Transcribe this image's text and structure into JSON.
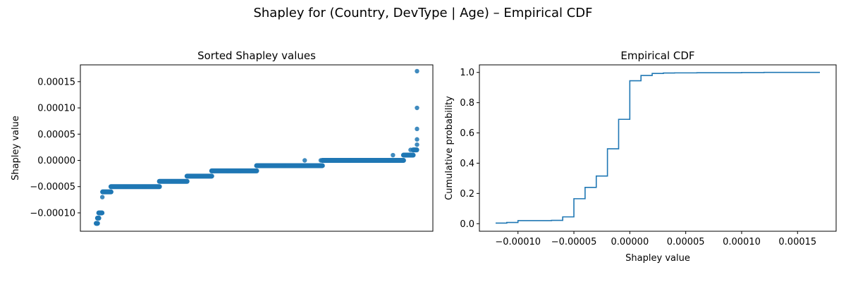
{
  "figure": {
    "title": "Shapley for (Country, DevType | Age) – Empirical CDF",
    "accent_color": "#1f77b4"
  },
  "chart_data": [
    {
      "type": "scatter",
      "title": "Sorted Shapley values",
      "xlabel": "",
      "ylabel": "Shapley value",
      "grid": false,
      "x_ticks_visible": false,
      "ylim": [
        -0.000135,
        0.000182
      ],
      "yticks": [
        -0.0001,
        -5e-05,
        0.0,
        5e-05,
        0.0001,
        0.00015
      ],
      "ytick_labels": [
        "−0.00010",
        "−0.00005",
        "0.00000",
        "0.00005",
        "0.00010",
        "0.00015"
      ],
      "series": [
        {
          "color": "#1f77b4",
          "points_note": "sorted index (0–1) vs value",
          "x": [
            0.0,
            0.004,
            0.006,
            0.009,
            0.013,
            0.019,
            0.022,
            0.045,
            0.09,
            0.15,
            0.195,
            0.24,
            0.255,
            0.285,
            0.33,
            0.36,
            0.41,
            0.45,
            0.52,
            0.585,
            0.64,
            0.65,
            0.7,
            0.79,
            0.915,
            0.925,
            0.96,
            0.98,
            0.99,
            1.0,
            1.0,
            1.0,
            1.0,
            1.0
          ],
          "y": [
            -0.00012,
            -0.00012,
            -0.00011,
            -0.0001,
            -0.0001,
            -7e-05,
            -6e-05,
            -6e-05,
            -5e-05,
            -5e-05,
            -5e-05,
            -4e-05,
            -4e-05,
            -3e-05,
            -3e-05,
            -2e-05,
            -2e-05,
            -2e-05,
            -1e-05,
            -1e-05,
            -1e-05,
            0.0,
            0.0,
            0.0,
            0.0,
            1e-05,
            1e-05,
            2e-05,
            2e-05,
            3e-05,
            4e-05,
            6e-05,
            0.0001,
            0.00017
          ]
        }
      ],
      "flat_segments": [
        {
          "y": -0.00012,
          "x0": 0.0,
          "x1": 0.004
        },
        {
          "y": -0.00011,
          "x0": 0.004,
          "x1": 0.008
        },
        {
          "y": -0.0001,
          "x0": 0.008,
          "x1": 0.018
        },
        {
          "y": -6e-05,
          "x0": 0.02,
          "x1": 0.046
        },
        {
          "y": -5e-05,
          "x0": 0.046,
          "x1": 0.197
        },
        {
          "y": -4e-05,
          "x0": 0.197,
          "x1": 0.283
        },
        {
          "y": -3e-05,
          "x0": 0.283,
          "x1": 0.36
        },
        {
          "y": -2e-05,
          "x0": 0.36,
          "x1": 0.5
        },
        {
          "y": -1e-05,
          "x0": 0.5,
          "x1": 0.705
        },
        {
          "y": 0.0,
          "x0": 0.705,
          "x1": 0.958
        },
        {
          "y": 1e-05,
          "x0": 0.958,
          "x1": 0.988
        },
        {
          "y": 2e-05,
          "x0": 0.988,
          "x1": 0.999
        }
      ]
    },
    {
      "type": "line",
      "step": true,
      "title": "Empirical CDF",
      "xlabel": "Shapley value",
      "ylabel": "Cumulative probability",
      "grid": false,
      "xlim": [
        -0.0001345,
        0.0001845
      ],
      "ylim": [
        -0.05,
        1.05
      ],
      "xticks": [
        -0.0001,
        -5e-05,
        0.0,
        5e-05,
        0.0001,
        0.00015
      ],
      "xtick_labels": [
        "−0.00010",
        "−0.00005",
        "0.00000",
        "0.00005",
        "0.00010",
        "0.00015"
      ],
      "yticks": [
        0.0,
        0.2,
        0.4,
        0.6,
        0.8,
        1.0
      ],
      "ytick_labels": [
        "0.0",
        "0.2",
        "0.4",
        "0.6",
        "0.8",
        "1.0"
      ],
      "series": [
        {
          "color": "#1f77b4",
          "x": [
            -0.00012,
            -0.00011,
            -0.0001,
            -7e-05,
            -6e-05,
            -5e-05,
            -4e-05,
            -3e-05,
            -2e-05,
            -1e-05,
            0.0,
            1e-05,
            2e-05,
            3e-05,
            4e-05,
            6e-05,
            0.0001,
            0.00012,
            0.00017
          ],
          "y": [
            0.004,
            0.008,
            0.02,
            0.022,
            0.045,
            0.165,
            0.24,
            0.315,
            0.495,
            0.69,
            0.945,
            0.98,
            0.993,
            0.996,
            0.997,
            0.998,
            0.999,
            1.0,
            1.0
          ]
        }
      ]
    }
  ]
}
